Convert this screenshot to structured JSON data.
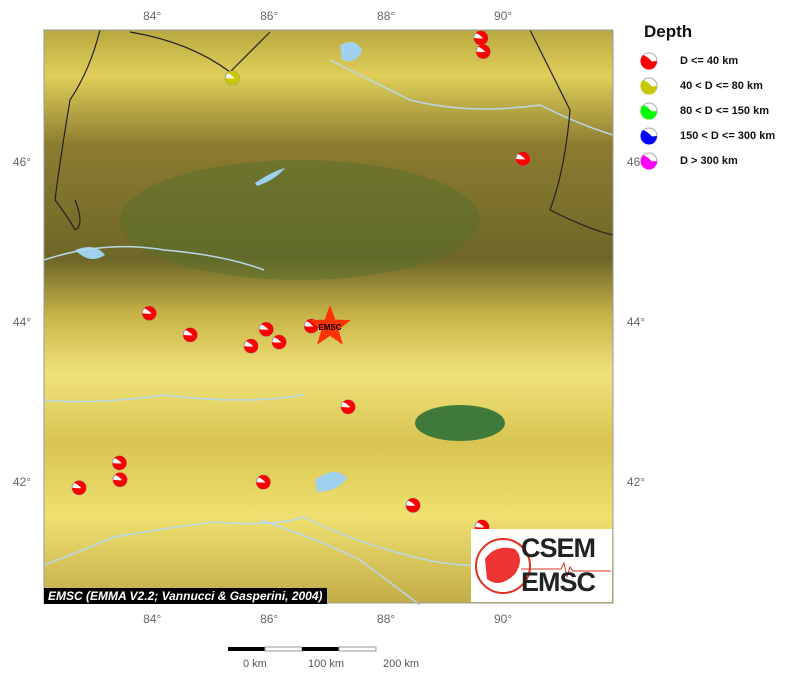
{
  "map": {
    "extent": {
      "lon": [
        82.15,
        91.88
      ],
      "lat": [
        40.49,
        47.65
      ]
    },
    "lon_ticks": [
      84,
      86,
      88,
      90
    ],
    "lat_ticks": [
      42,
      44,
      46
    ],
    "lon_tick_labels": [
      "84°",
      "86°",
      "88°",
      "90°"
    ],
    "lat_tick_labels": [
      "42°",
      "44°",
      "46°"
    ],
    "colors": {
      "lowland": "#8a7a2e",
      "highland": "#e8d860",
      "basin": "#3f7a3a",
      "water": "#9fd0f0",
      "river": "#b8d8e8",
      "border": "#222222"
    }
  },
  "epicenter": {
    "lon": 87.04,
    "lat": 43.94,
    "label": "EMSC",
    "color": "#ff3300"
  },
  "events": [
    {
      "lon": 85.37,
      "lat": 47.05,
      "depth_class": "40-80"
    },
    {
      "lon": 89.62,
      "lat": 47.55,
      "depth_class": "0-40"
    },
    {
      "lon": 89.66,
      "lat": 47.38,
      "depth_class": "0-40"
    },
    {
      "lon": 90.34,
      "lat": 46.04,
      "depth_class": "0-40"
    },
    {
      "lon": 83.95,
      "lat": 44.11,
      "depth_class": "0-40"
    },
    {
      "lon": 84.65,
      "lat": 43.84,
      "depth_class": "0-40"
    },
    {
      "lon": 85.95,
      "lat": 43.91,
      "depth_class": "0-40"
    },
    {
      "lon": 85.69,
      "lat": 43.7,
      "depth_class": "0-40"
    },
    {
      "lon": 86.17,
      "lat": 43.75,
      "depth_class": "0-40"
    },
    {
      "lon": 86.72,
      "lat": 43.95,
      "depth_class": "0-40"
    },
    {
      "lon": 87.35,
      "lat": 42.94,
      "depth_class": "0-40"
    },
    {
      "lon": 83.44,
      "lat": 42.24,
      "depth_class": "0-40"
    },
    {
      "lon": 83.45,
      "lat": 42.03,
      "depth_class": "0-40"
    },
    {
      "lon": 82.75,
      "lat": 41.93,
      "depth_class": "0-40"
    },
    {
      "lon": 85.9,
      "lat": 42.0,
      "depth_class": "0-40"
    },
    {
      "lon": 88.46,
      "lat": 41.71,
      "depth_class": "0-40"
    },
    {
      "lon": 89.64,
      "lat": 41.44,
      "depth_class": "0-40"
    }
  ],
  "legend": {
    "title": "Depth",
    "items": [
      {
        "key": "0-40",
        "label": "D <= 40 km",
        "color": "#ff0000"
      },
      {
        "key": "40-80",
        "label": "40 < D <= 80 km",
        "color": "#c8c800"
      },
      {
        "key": "80-150",
        "label": "80 < D <= 150 km",
        "color": "#00ff00"
      },
      {
        "key": "150-300",
        "label": "150 < D <= 300 km",
        "color": "#0000ff"
      },
      {
        "key": "300+",
        "label": "D > 300 km",
        "color": "#ff00ff"
      }
    ]
  },
  "credit": "EMSC (EMMA V2.2; Vannucci & Gasperini, 2004)",
  "logo": {
    "line1": "CSEM",
    "line2": "EMSC"
  },
  "scalebar": {
    "labels": [
      "0 km",
      "100 km",
      "200 km"
    ]
  }
}
